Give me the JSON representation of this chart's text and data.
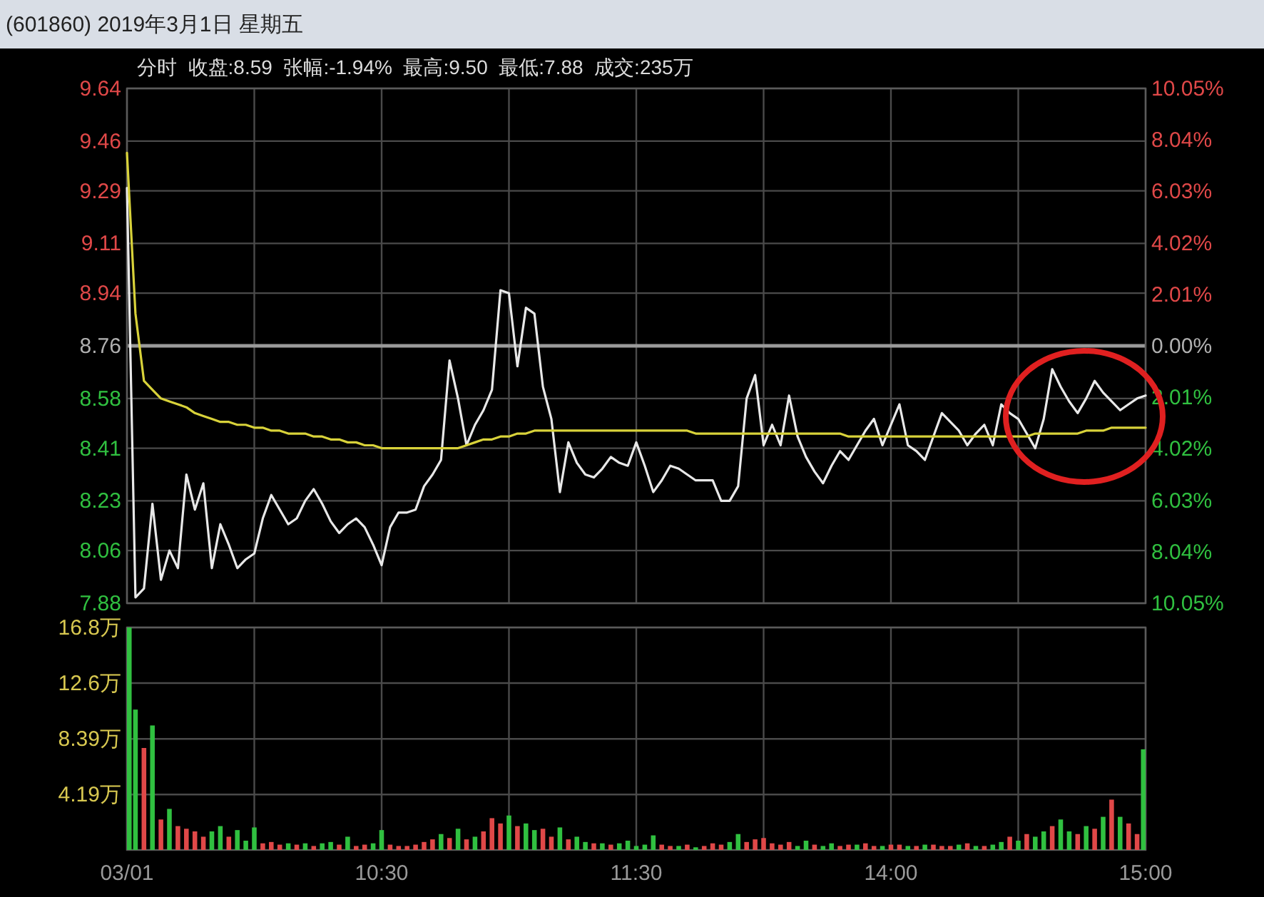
{
  "chart_data": [
    {
      "type": "line",
      "title": "(601860) 2019年3月1日 星期五",
      "subtitle": "分时  收盘:8.59  张幅:-1.94%  最高:9.50  最低:7.88  成交:235万",
      "categories": [
        null,
        null,
        null,
        null,
        null,
        null,
        null,
        null,
        null,
        null,
        null,
        null,
        null,
        null,
        null,
        null,
        null,
        null,
        null,
        null,
        null,
        null,
        null,
        null,
        null,
        null,
        null,
        null,
        null,
        null,
        null,
        null,
        null,
        null,
        null,
        null,
        null,
        null,
        null,
        null,
        null,
        null,
        null,
        null,
        null,
        null,
        null,
        null,
        null,
        null,
        null,
        null,
        null,
        null,
        null,
        null,
        null,
        null,
        null,
        null,
        null,
        null,
        null,
        null,
        null,
        null,
        null,
        null,
        null,
        null,
        null,
        null,
        null,
        null,
        null,
        null,
        null,
        null,
        null,
        null,
        null,
        null,
        null,
        null,
        null,
        null,
        null,
        null,
        null,
        null,
        null,
        null,
        null,
        null,
        null,
        null,
        null,
        null,
        null,
        null,
        null,
        null,
        null,
        null,
        null,
        null,
        null,
        null,
        null,
        null,
        null,
        null,
        null,
        null,
        null,
        null,
        null,
        null,
        null,
        null,
        null
      ],
      "ylim": [
        7.88,
        9.64
      ],
      "yticks": [
        7.88,
        8.06,
        8.23,
        8.41,
        8.58,
        8.76,
        8.94,
        9.11,
        9.29,
        9.46,
        9.64
      ],
      "y2lim": [
        -10.05,
        10.05
      ],
      "y2ticks": [
        {
          "value": -10.05,
          "label": "10.05%"
        },
        {
          "value": -8.04,
          "label": "8.04%"
        },
        {
          "value": -6.03,
          "label": "6.03%"
        },
        {
          "value": -4.02,
          "label": "4.02%"
        },
        {
          "value": -2.01,
          "label": "2.01%"
        },
        {
          "value": 0,
          "label": "0.00%"
        },
        {
          "value": 2.01,
          "label": "2.01%"
        },
        {
          "value": 4.02,
          "label": "4.02%"
        },
        {
          "value": 6.03,
          "label": "6.03%"
        },
        {
          "value": 8.04,
          "label": "8.04%"
        },
        {
          "value": 10.05,
          "label": "10.05%"
        }
      ],
      "grid": true,
      "ref_lines": [
        {
          "axis": "y",
          "value": 8.76,
          "color": "#9a9a9a"
        }
      ],
      "series": [
        {
          "color": "#e8e8e8",
          "values": [
            9.3,
            7.9,
            7.93,
            8.22,
            7.96,
            8.06,
            8.0,
            8.32,
            8.2,
            8.29,
            8.0,
            8.15,
            8.08,
            8.0,
            8.03,
            8.05,
            8.17,
            8.25,
            8.2,
            8.15,
            8.17,
            8.23,
            8.27,
            8.22,
            8.16,
            8.12,
            8.15,
            8.17,
            8.14,
            8.08,
            8.01,
            8.14,
            8.19,
            8.19,
            8.2,
            8.28,
            8.32,
            8.37,
            8.71,
            8.58,
            8.42,
            8.49,
            8.54,
            8.61,
            8.95,
            8.94,
            8.69,
            8.89,
            8.87,
            8.62,
            8.51,
            8.26,
            8.43,
            8.36,
            8.32,
            8.31,
            8.34,
            8.38,
            8.36,
            8.35,
            8.43,
            8.35,
            8.26,
            8.3,
            8.35,
            8.34,
            8.32,
            8.3,
            8.3,
            8.3,
            8.23,
            8.23,
            8.28,
            8.58,
            8.66,
            8.42,
            8.49,
            8.42,
            8.59,
            8.45,
            8.38,
            8.33,
            8.29,
            8.35,
            8.4,
            8.37,
            8.42,
            8.47,
            8.51,
            8.42,
            8.49,
            8.56,
            8.42,
            8.4,
            8.37,
            8.45,
            8.53,
            8.5,
            8.47,
            8.42,
            8.46,
            8.49,
            8.42,
            8.56,
            8.53,
            8.51,
            8.46,
            8.41,
            8.51,
            8.68,
            8.62,
            8.57,
            8.53,
            8.58,
            8.64,
            8.6,
            8.57,
            8.54,
            8.56,
            8.58,
            8.59
          ]
        },
        {
          "color": "#d8d23a",
          "values": [
            9.42,
            8.87,
            8.64,
            8.61,
            8.58,
            8.57,
            8.56,
            8.55,
            8.53,
            8.52,
            8.51,
            8.5,
            8.5,
            8.49,
            8.49,
            8.48,
            8.48,
            8.47,
            8.47,
            8.46,
            8.46,
            8.46,
            8.45,
            8.45,
            8.44,
            8.44,
            8.43,
            8.43,
            8.42,
            8.42,
            8.41,
            8.41,
            8.41,
            8.41,
            8.41,
            8.41,
            8.41,
            8.41,
            8.41,
            8.41,
            8.42,
            8.43,
            8.44,
            8.44,
            8.45,
            8.45,
            8.46,
            8.46,
            8.47,
            8.47,
            8.47,
            8.47,
            8.47,
            8.47,
            8.47,
            8.47,
            8.47,
            8.47,
            8.47,
            8.47,
            8.47,
            8.47,
            8.47,
            8.47,
            8.47,
            8.47,
            8.47,
            8.46,
            8.46,
            8.46,
            8.46,
            8.46,
            8.46,
            8.46,
            8.46,
            8.46,
            8.46,
            8.46,
            8.46,
            8.46,
            8.46,
            8.46,
            8.46,
            8.46,
            8.46,
            8.45,
            8.45,
            8.45,
            8.45,
            8.45,
            8.45,
            8.45,
            8.45,
            8.45,
            8.45,
            8.45,
            8.45,
            8.45,
            8.45,
            8.45,
            8.45,
            8.45,
            8.45,
            8.45,
            8.45,
            8.45,
            8.45,
            8.46,
            8.46,
            8.46,
            8.46,
            8.46,
            8.46,
            8.47,
            8.47,
            8.47,
            8.48,
            8.48,
            8.48,
            8.48,
            8.48
          ]
        }
      ]
    },
    {
      "type": "bar",
      "categories": [
        "03/01",
        null,
        null,
        null,
        null,
        null,
        null,
        null,
        null,
        null,
        null,
        null,
        null,
        null,
        null,
        null,
        null,
        null,
        null,
        null,
        null,
        null,
        null,
        null,
        null,
        null,
        null,
        null,
        null,
        null,
        "10:30",
        null,
        null,
        null,
        null,
        null,
        null,
        null,
        null,
        null,
        null,
        null,
        null,
        null,
        null,
        null,
        null,
        null,
        null,
        null,
        null,
        null,
        null,
        null,
        null,
        null,
        null,
        null,
        null,
        null,
        "11:30",
        null,
        null,
        null,
        null,
        null,
        null,
        null,
        null,
        null,
        null,
        null,
        null,
        null,
        null,
        null,
        null,
        null,
        null,
        null,
        null,
        null,
        null,
        null,
        null,
        null,
        null,
        null,
        null,
        null,
        "14:00",
        null,
        null,
        null,
        null,
        null,
        null,
        null,
        null,
        null,
        null,
        null,
        null,
        null,
        null,
        null,
        null,
        null,
        null,
        null,
        null,
        null,
        null,
        null,
        null,
        null,
        null,
        null,
        null,
        null,
        "15:00"
      ],
      "ylim": [
        0,
        16.8
      ],
      "yticks": [
        {
          "value": 4.19,
          "label": "4.19万"
        },
        {
          "value": 8.39,
          "label": "8.39万"
        },
        {
          "value": 12.6,
          "label": "12.6万"
        },
        {
          "value": 16.8,
          "label": "16.8万"
        }
      ],
      "grid": true,
      "series": [
        {
          "values": [
            16.8,
            10.6,
            7.7,
            9.4,
            2.3,
            3.1,
            1.8,
            1.6,
            1.4,
            1.0,
            1.4,
            1.8,
            1.0,
            1.5,
            0.7,
            1.7,
            0.5,
            0.6,
            0.4,
            0.5,
            0.4,
            0.5,
            0.3,
            0.5,
            0.6,
            0.4,
            1.0,
            0.3,
            0.4,
            0.5,
            1.5,
            0.4,
            0.3,
            0.3,
            0.4,
            0.6,
            0.8,
            1.2,
            0.9,
            1.6,
            0.8,
            1.0,
            1.4,
            2.4,
            2.0,
            2.6,
            1.8,
            2.0,
            1.5,
            1.6,
            1.0,
            1.7,
            0.8,
            1.0,
            0.6,
            0.5,
            0.5,
            0.4,
            0.5,
            0.7,
            0.3,
            0.4,
            1.1,
            0.4,
            0.3,
            0.3,
            0.4,
            0.2,
            0.3,
            0.5,
            0.4,
            0.6,
            1.2,
            0.6,
            0.8,
            0.9,
            0.5,
            0.4,
            0.6,
            0.3,
            0.7,
            0.4,
            0.3,
            0.5,
            0.3,
            0.4,
            0.4,
            0.5,
            0.3,
            0.3,
            0.4,
            0.4,
            0.3,
            0.3,
            0.4,
            0.4,
            0.3,
            0.3,
            0.4,
            0.5,
            0.3,
            0.3,
            0.4,
            0.6,
            1.0,
            0.7,
            1.2,
            1.0,
            1.4,
            1.8,
            2.3,
            1.4,
            1.2,
            1.8,
            1.6,
            2.5,
            3.8,
            2.5,
            2.0,
            1.2,
            7.6
          ],
          "colors": [
            "#30c040",
            "#30c040",
            "#e04848",
            "#30c040",
            "#e04848",
            "#30c040",
            "#e04848",
            "#e04848",
            "#e04848",
            "#e04848",
            "#30c040",
            "#30c040",
            "#e04848",
            "#30c040",
            "#30c040",
            "#30c040",
            "#e04848",
            "#e04848",
            "#e04848",
            "#30c040",
            "#e04848",
            "#30c040",
            "#e04848",
            "#30c040",
            "#30c040",
            "#e04848",
            "#30c040",
            "#e04848",
            "#e04848",
            "#30c040",
            "#30c040",
            "#e04848",
            "#e04848",
            "#e04848",
            "#e04848",
            "#e04848",
            "#e04848",
            "#30c040",
            "#e04848",
            "#30c040",
            "#e04848",
            "#30c040",
            "#e04848",
            "#e04848",
            "#e04848",
            "#30c040",
            "#e04848",
            "#30c040",
            "#30c040",
            "#e04848",
            "#e04848",
            "#30c040",
            "#e04848",
            "#30c040",
            "#30c040",
            "#e04848",
            "#30c040",
            "#e04848",
            "#30c040",
            "#30c040",
            "#30c040",
            "#30c040",
            "#30c040",
            "#e04848",
            "#e04848",
            "#30c040",
            "#e04848",
            "#30c040",
            "#e04848",
            "#e04848",
            "#e04848",
            "#30c040",
            "#30c040",
            "#e04848",
            "#e04848",
            "#e04848",
            "#e04848",
            "#e04848",
            "#e04848",
            "#30c040",
            "#30c040",
            "#e04848",
            "#30c040",
            "#30c040",
            "#e04848",
            "#e04848",
            "#30c040",
            "#e04848",
            "#e04848",
            "#30c040",
            "#e04848",
            "#e04848",
            "#30c040",
            "#e04848",
            "#30c040",
            "#e04848",
            "#e04848",
            "#e04848",
            "#30c040",
            "#e04848",
            "#30c040",
            "#e04848",
            "#30c040",
            "#30c040",
            "#e04848",
            "#30c040",
            "#e04848",
            "#30c040",
            "#30c040",
            "#e04848",
            "#30c040",
            "#30c040",
            "#e04848",
            "#30c040",
            "#e04848",
            "#30c040",
            "#e04848",
            "#30c040",
            "#e04848",
            "#e04848",
            "#30c040"
          ]
        }
      ]
    }
  ]
}
